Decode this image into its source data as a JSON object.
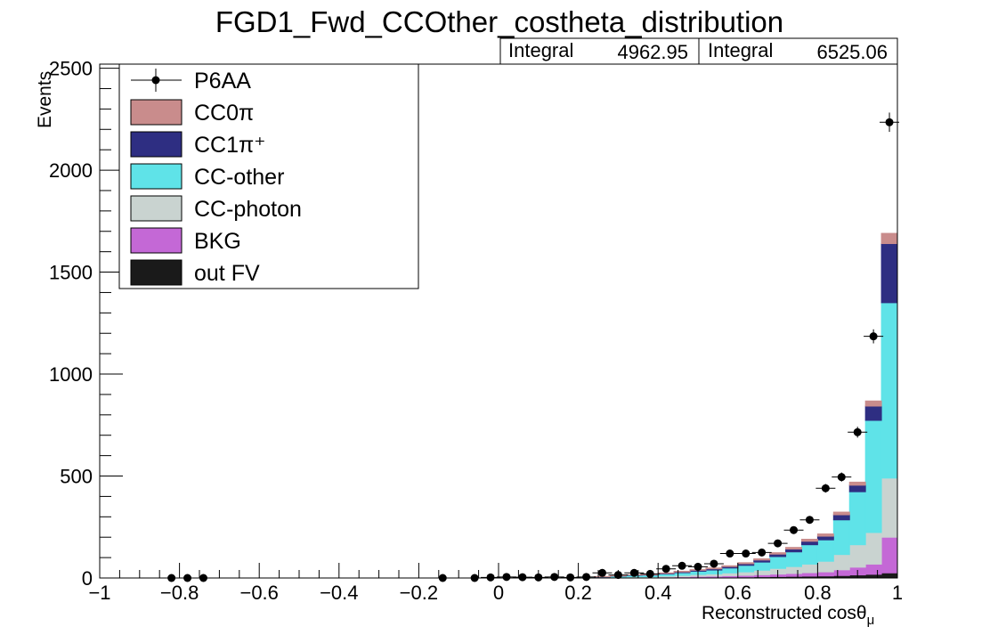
{
  "chart_data": {
    "type": "histogram-stack",
    "title": "FGD1_Fwd_CCOther_costheta_distribution",
    "xlabel": "Reconstructed cosθ",
    "xlabel_sub": "μ",
    "ylabel": "Events",
    "xlim": [
      -1,
      1
    ],
    "ylim": [
      0,
      2520
    ],
    "xticks": [
      -1,
      -0.8,
      -0.6,
      -0.4,
      -0.2,
      0,
      0.2,
      0.4,
      0.6,
      0.8,
      1
    ],
    "xtick_labels": [
      "−1",
      "−0.8",
      "−0.6",
      "−0.4",
      "−0.2",
      "0",
      "0.2",
      "0.4",
      "0.6",
      "0.8",
      "1"
    ],
    "yticks": [
      0,
      500,
      1000,
      1500,
      2000,
      2500
    ],
    "ytick_labels": [
      "0",
      "500",
      "1000",
      "1500",
      "2000",
      "2500"
    ],
    "stats": [
      {
        "label": "Integral",
        "value": "4962.95"
      },
      {
        "label": "Integral",
        "value": "6525.06"
      }
    ],
    "legend": [
      {
        "label": "P6AA",
        "kind": "data"
      },
      {
        "label": "CC0π",
        "kind": "fill",
        "color": "#c98c8c"
      },
      {
        "label": "CC1π⁺",
        "kind": "fill",
        "color": "#2e2e82"
      },
      {
        "label": "CC-other",
        "kind": "fill",
        "color": "#5fe3e8"
      },
      {
        "label": "CC-photon",
        "kind": "fill",
        "color": "#c9d3d0"
      },
      {
        "label": "BKG",
        "kind": "fill",
        "color": "#c468d6"
      },
      {
        "label": "out FV",
        "kind": "fill",
        "color": "#1a1a1a"
      }
    ],
    "mc_bins": {
      "edges": [
        0.2,
        0.24,
        0.28,
        0.32,
        0.36,
        0.4,
        0.44,
        0.48,
        0.52,
        0.56,
        0.6,
        0.64,
        0.68,
        0.72,
        0.76,
        0.8,
        0.84,
        0.88,
        0.92,
        0.96,
        1.0
      ],
      "series": [
        {
          "name": "out FV",
          "color": "#1a1a1a",
          "values": [
            0,
            0,
            1,
            1,
            1,
            2,
            2,
            3,
            3,
            4,
            5,
            6,
            7,
            8,
            9,
            10,
            12,
            15,
            18,
            25
          ]
        },
        {
          "name": "BKG",
          "color": "#c468d6",
          "values": [
            0,
            1,
            1,
            2,
            2,
            3,
            4,
            5,
            6,
            7,
            8,
            10,
            12,
            14,
            17,
            20,
            28,
            38,
            50,
            175
          ]
        },
        {
          "name": "CC-photon",
          "color": "#c9d3d0",
          "values": [
            0,
            1,
            2,
            3,
            3,
            5,
            7,
            9,
            11,
            14,
            17,
            22,
            28,
            34,
            42,
            52,
            75,
            110,
            155,
            290
          ]
        },
        {
          "name": "CC-other",
          "color": "#5fe3e8",
          "values": [
            1,
            3,
            5,
            7,
            8,
            10,
            13,
            16,
            19,
            24,
            32,
            40,
            58,
            72,
            95,
            105,
            170,
            260,
            550,
            860
          ]
        },
        {
          "name": "CC1π⁺",
          "color": "#2e2e82",
          "values": [
            0,
            1,
            1,
            2,
            2,
            3,
            4,
            5,
            6,
            7,
            8,
            10,
            12,
            14,
            17,
            18,
            25,
            32,
            70,
            290
          ]
        },
        {
          "name": "CC0π",
          "color": "#c98c8c",
          "values": [
            0,
            1,
            1,
            1,
            2,
            2,
            3,
            3,
            4,
            4,
            5,
            6,
            7,
            8,
            10,
            11,
            13,
            15,
            25,
            50
          ]
        }
      ]
    },
    "data_points": {
      "x": [
        -0.82,
        -0.78,
        -0.74,
        -0.14,
        -0.06,
        -0.02,
        0.02,
        0.06,
        0.1,
        0.14,
        0.18,
        0.22,
        0.26,
        0.3,
        0.34,
        0.38,
        0.42,
        0.46,
        0.5,
        0.54,
        0.58,
        0.62,
        0.66,
        0.7,
        0.74,
        0.78,
        0.82,
        0.86,
        0.9,
        0.94,
        0.98
      ],
      "y": [
        0,
        0,
        0,
        0,
        0,
        3,
        5,
        4,
        3,
        5,
        3,
        5,
        25,
        15,
        25,
        20,
        45,
        60,
        55,
        70,
        120,
        120,
        125,
        170,
        235,
        285,
        440,
        495,
        715,
        1185,
        2235
      ]
    }
  }
}
